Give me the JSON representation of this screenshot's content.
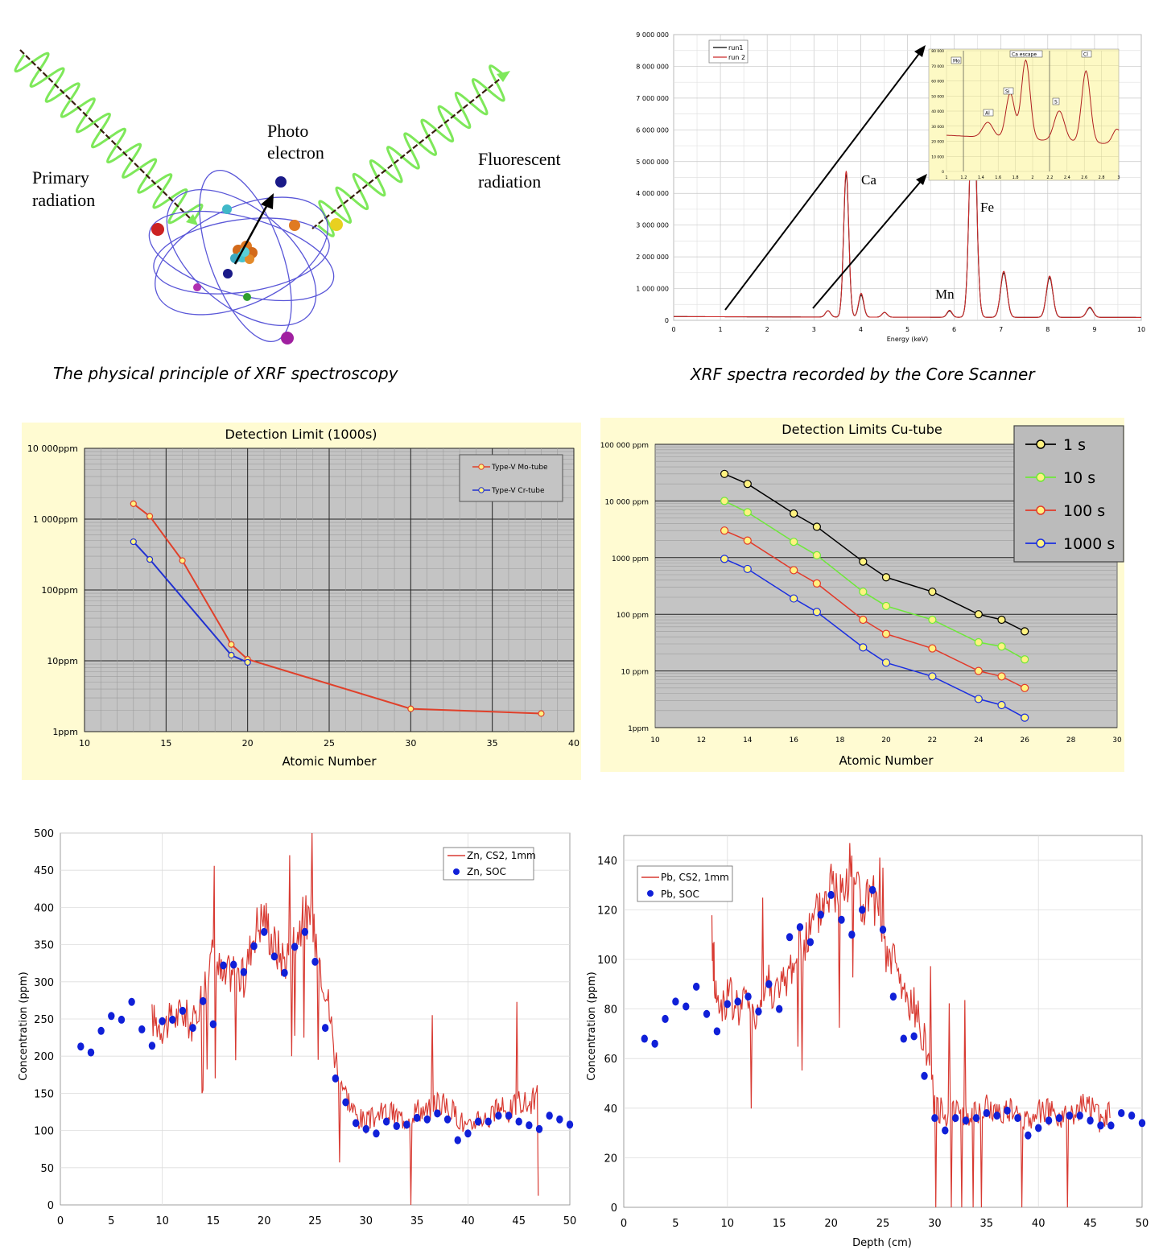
{
  "atom": {
    "labels": {
      "primary": [
        "Primary",
        "radiation"
      ],
      "photo": [
        "Photo",
        "electron"
      ],
      "fluorescent": [
        "Fluorescent",
        "radiation"
      ]
    },
    "caption": "The physical principle of XRF spectroscopy",
    "colors": {
      "wave": "#7ee85a",
      "ray": "#3a1e10",
      "orbit": "#5a57d8"
    }
  },
  "xrf": {
    "caption": "XRF spectra recorded by the Core Scanner",
    "xlabel": "Energy (keV)",
    "xticks": [
      "0",
      "1",
      "2",
      "3",
      "4",
      "5",
      "6",
      "7",
      "8",
      "9",
      "10"
    ],
    "yticks": [
      "0",
      "1 000 000",
      "2 000 000",
      "3 000 000",
      "4 000 000",
      "5 000 000",
      "6 000 000",
      "7 000 000",
      "8 000 000",
      "9 000 000"
    ],
    "legend": [
      "run1",
      "run 2"
    ],
    "peak_labels": {
      "ca": "Ca",
      "fe": "Fe",
      "mn": "Mn"
    },
    "inset": {
      "labels": {
        "al": "Al",
        "si": "Si",
        "ca_escape": "Ca escape",
        "s": "S",
        "cl": "Cl",
        "box": "Mo"
      },
      "xticks": [
        "1",
        "1.2",
        "1.4",
        "1.6",
        "1.8",
        "2",
        "2.2",
        "2.4",
        "2.6",
        "2.8",
        "3"
      ],
      "yticks": [
        "0",
        "10 000",
        "20 000",
        "30 000",
        "40 000",
        "50 000",
        "60 000",
        "70 000",
        "80 000"
      ]
    }
  },
  "detection_mo": {
    "title": "Detection Limit (1000s)",
    "xlabel": "Atomic Number",
    "xticks": [
      "10",
      "15",
      "20",
      "25",
      "30",
      "35",
      "40"
    ],
    "yticks": [
      "1ppm",
      "10ppm",
      "100ppm",
      "1 000ppm",
      "10 000ppm"
    ],
    "legend": [
      "Type-V Mo-tube",
      "Type-V Cr-tube"
    ]
  },
  "detection_cu": {
    "title": "Detection Limits Cu-tube",
    "xlabel": "Atomic Number",
    "xticks": [
      "10",
      "12",
      "14",
      "16",
      "18",
      "20",
      "22",
      "24",
      "26",
      "28",
      "30"
    ],
    "yticks": [
      "1ppm",
      "10 ppm",
      "100 ppm",
      "1000 ppm",
      "10 000 ppm",
      "100 000 ppm"
    ],
    "legend": [
      "1 s",
      "10 s",
      "100 s",
      "1000 s"
    ]
  },
  "zn": {
    "ylabel": "Concentration (ppm)",
    "xticks": [
      "0",
      "5",
      "10",
      "15",
      "20",
      "25",
      "30",
      "35",
      "40",
      "45",
      "50"
    ],
    "yticks": [
      "0",
      "50",
      "100",
      "150",
      "200",
      "250",
      "300",
      "350",
      "400",
      "450",
      "500"
    ],
    "legend": [
      "Zn, CS2, 1mm",
      "Zn, SOC"
    ]
  },
  "pb": {
    "ylabel": "Concentration (ppm)",
    "xlabel": "Depth (cm)",
    "xticks": [
      "0",
      "5",
      "10",
      "15",
      "20",
      "25",
      "30",
      "35",
      "40",
      "45",
      "50"
    ],
    "yticks": [
      "0",
      "20",
      "40",
      "60",
      "80",
      "100",
      "120",
      "140"
    ],
    "legend": [
      "Pb, CS2, 1mm",
      "Pb, SOC"
    ]
  },
  "chart_data": [
    {
      "type": "line",
      "title": "XRF spectra recorded by the Core Scanner",
      "xlabel": "Energy (keV)",
      "ylabel": "",
      "xlim": [
        0,
        10
      ],
      "ylim": [
        0,
        9000000
      ],
      "series": [
        {
          "name": "run1",
          "color": "#000000",
          "peaks": [
            [
              3.3,
              200000
            ],
            [
              3.69,
              4500000
            ],
            [
              4.01,
              700000
            ],
            [
              4.51,
              150000
            ],
            [
              5.9,
              200000
            ],
            [
              6.4,
              7500000
            ],
            [
              7.06,
              1400000
            ],
            [
              8.04,
              1250000
            ],
            [
              8.9,
              300000
            ]
          ]
        },
        {
          "name": "run 2",
          "color": "#cc2a2a",
          "peaks": [
            [
              3.3,
              200000
            ],
            [
              3.69,
              4600000
            ],
            [
              4.01,
              750000
            ],
            [
              4.51,
              150000
            ],
            [
              5.9,
              220000
            ],
            [
              6.4,
              7600000
            ],
            [
              7.06,
              1450000
            ],
            [
              8.04,
              1300000
            ],
            [
              8.9,
              320000
            ]
          ]
        }
      ]
    },
    {
      "type": "line",
      "title": "Detection Limit (1000s)",
      "xlabel": "Atomic Number",
      "ylabel": "",
      "xlim": [
        10,
        40
      ],
      "ylim": [
        1,
        10000
      ],
      "yscale": "log",
      "series": [
        {
          "name": "Type-V Mo-tube",
          "color": "#e0402a",
          "x": [
            13,
            14,
            16,
            19,
            20,
            30,
            38
          ],
          "values": [
            1650,
            1100,
            260,
            17,
            10.5,
            2.1,
            1.8
          ]
        },
        {
          "name": "Type-V Cr-tube",
          "color": "#2030d0",
          "x": [
            13,
            14,
            19,
            20
          ],
          "values": [
            480,
            270,
            12,
            9.5
          ]
        }
      ]
    },
    {
      "type": "line",
      "title": "Detection Limits Cu-tube",
      "xlabel": "Atomic Number",
      "ylabel": "",
      "xlim": [
        10,
        30
      ],
      "ylim": [
        1,
        100000
      ],
      "yscale": "log",
      "series": [
        {
          "name": "1 s",
          "color": "#000000",
          "x": [
            13,
            14,
            16,
            17,
            19,
            20,
            22,
            24,
            25,
            26
          ],
          "values": [
            30000,
            20000,
            6000,
            3500,
            850,
            450,
            250,
            100,
            80,
            50
          ]
        },
        {
          "name": "10 s",
          "color": "#6ee83a",
          "x": [
            13,
            14,
            16,
            17,
            19,
            20,
            22,
            24,
            25,
            26
          ],
          "values": [
            10000,
            6300,
            1900,
            1100,
            250,
            140,
            80,
            32,
            27,
            16
          ]
        },
        {
          "name": "100 s",
          "color": "#e23a2a",
          "x": [
            13,
            14,
            16,
            17,
            19,
            20,
            22,
            24,
            25,
            26
          ],
          "values": [
            3000,
            2000,
            600,
            350,
            80,
            45,
            25,
            10,
            8,
            5
          ]
        },
        {
          "name": "1000 s",
          "color": "#1a2ee0",
          "x": [
            13,
            14,
            16,
            17,
            19,
            20,
            22,
            24,
            25,
            26
          ],
          "values": [
            950,
            630,
            190,
            110,
            26,
            14,
            8,
            3.2,
            2.5,
            1.5
          ]
        }
      ]
    },
    {
      "type": "line",
      "title": "",
      "xlabel": "",
      "ylabel": "Concentration (ppm)",
      "xlim": [
        0,
        50
      ],
      "ylim": [
        0,
        500
      ],
      "series": [
        {
          "name": "Zn, CS2, 1mm",
          "color": "#d83a32",
          "x": [
            9,
            10,
            11,
            12,
            13,
            14,
            15,
            16,
            17,
            18,
            19,
            20,
            21,
            22,
            23,
            24,
            25,
            26,
            27,
            28,
            29,
            30,
            31,
            32,
            33,
            34,
            35,
            36,
            37,
            38,
            39,
            40,
            41,
            42,
            43,
            44,
            45,
            46,
            47
          ],
          "values": [
            250,
            240,
            250,
            260,
            240,
            290,
            340,
            300,
            320,
            300,
            370,
            390,
            350,
            330,
            360,
            390,
            360,
            300,
            200,
            150,
            120,
            110,
            120,
            125,
            120,
            115,
            130,
            125,
            140,
            130,
            120,
            100,
            120,
            115,
            130,
            125,
            140,
            135,
            150
          ]
        },
        {
          "name": "Zn, SOC",
          "color": "#1020d8",
          "type": "scatter",
          "x": [
            2,
            3,
            4,
            5,
            6,
            7,
            8,
            9,
            10,
            11,
            12,
            13,
            14,
            15,
            16,
            17,
            18,
            19,
            20,
            21,
            22,
            23,
            24,
            25,
            26,
            27,
            28,
            29,
            30,
            31,
            32,
            33,
            34,
            35,
            36,
            37,
            38,
            39,
            40,
            41,
            42,
            43,
            44,
            45,
            46,
            47,
            48,
            49,
            50
          ],
          "values": [
            213,
            205,
            234,
            254,
            249,
            273,
            236,
            214,
            247,
            249,
            261,
            238,
            274,
            243,
            322,
            323,
            313,
            348,
            367,
            334,
            312,
            347,
            367,
            327,
            238,
            170,
            138,
            110,
            102,
            96,
            112,
            106,
            108,
            117,
            115,
            123,
            115,
            87,
            96,
            112,
            112,
            120,
            120,
            112,
            107,
            102,
            120,
            115,
            108
          ]
        }
      ]
    },
    {
      "type": "line",
      "title": "",
      "xlabel": "Depth (cm)",
      "ylabel": "Concentration (ppm)",
      "xlim": [
        0,
        50
      ],
      "ylim": [
        0,
        150
      ],
      "series": [
        {
          "name": "Pb, CS2, 1mm",
          "color": "#d83a32",
          "x": [
            8.5,
            9,
            10,
            11,
            12,
            13,
            14,
            15,
            16,
            17,
            18,
            19,
            20,
            21,
            22,
            23,
            24,
            25,
            26,
            27,
            28,
            29,
            30,
            31,
            32,
            33,
            34,
            35,
            36,
            37,
            38,
            39,
            40,
            41,
            42,
            43,
            44,
            45,
            46,
            47
          ],
          "values": [
            110,
            80,
            85,
            80,
            83,
            78,
            92,
            85,
            95,
            105,
            110,
            120,
            130,
            125,
            140,
            120,
            125,
            100,
            100,
            85,
            80,
            70,
            40,
            38,
            40,
            36,
            38,
            40,
            38,
            40,
            36,
            35,
            40,
            38,
            36,
            38,
            40,
            42,
            35,
            38
          ]
        },
        {
          "name": "Pb, SOC",
          "color": "#1020d8",
          "type": "scatter",
          "x": [
            2,
            3,
            4,
            5,
            6,
            7,
            8,
            9,
            10,
            11,
            12,
            13,
            14,
            15,
            16,
            17,
            18,
            19,
            20,
            21,
            22,
            23,
            24,
            25,
            26,
            27,
            28,
            29,
            30,
            31,
            32,
            33,
            34,
            35,
            36,
            37,
            38,
            39,
            40,
            41,
            42,
            43,
            44,
            45,
            46,
            47,
            48,
            49,
            50
          ],
          "values": [
            68,
            66,
            76,
            83,
            81,
            89,
            78,
            71,
            82,
            83,
            85,
            79,
            90,
            80,
            109,
            113,
            107,
            118,
            126,
            116,
            110,
            120,
            128,
            112,
            85,
            68,
            69,
            53,
            36,
            31,
            36,
            35,
            36,
            38,
            37,
            39,
            36,
            29,
            32,
            35,
            36,
            37,
            37,
            35,
            33,
            33,
            38,
            37,
            34
          ]
        }
      ]
    }
  ]
}
